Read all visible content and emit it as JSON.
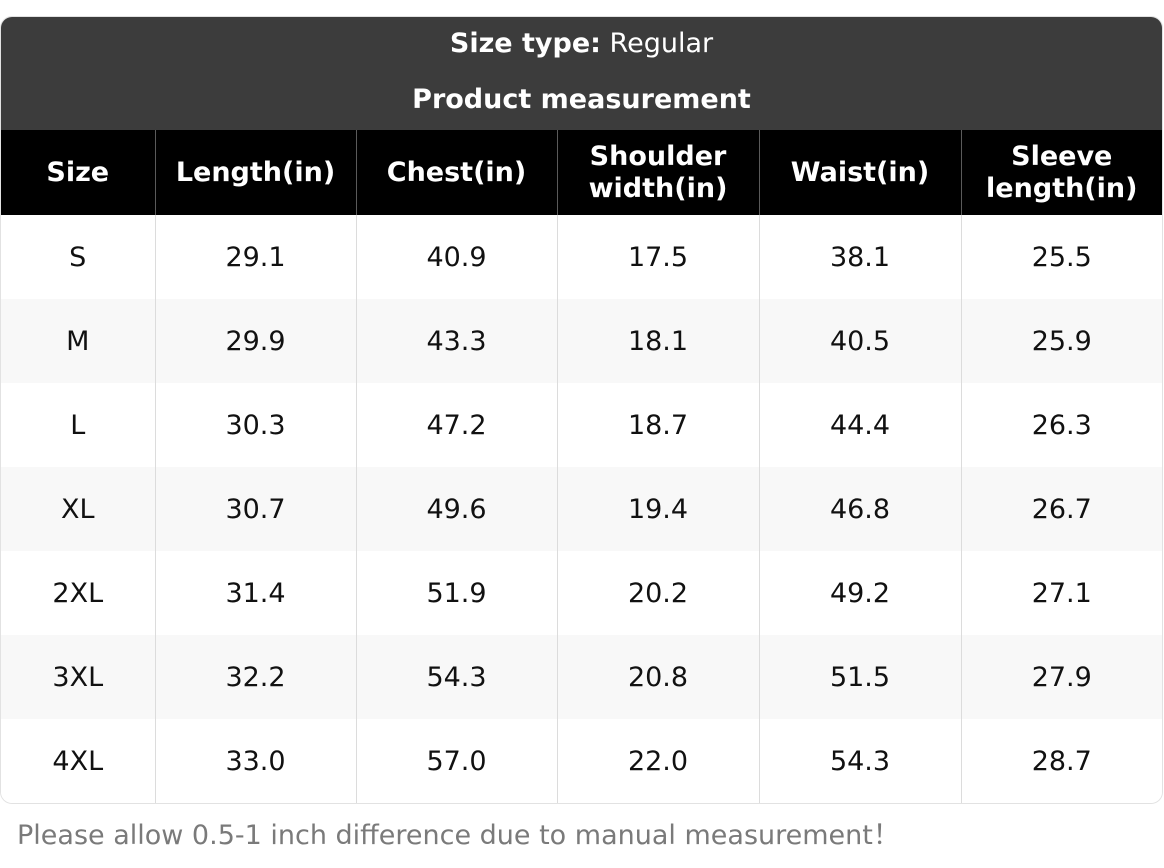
{
  "header": {
    "size_type_label": "Size type:",
    "size_type_value": "Regular",
    "subtitle": "Product measurement"
  },
  "table": {
    "columns": [
      "Size",
      "Length(in)",
      "Chest(in)",
      "Shoulder width(in)",
      "Waist(in)",
      "Sleeve length(in)"
    ],
    "rows": [
      [
        "S",
        "29.1",
        "40.9",
        "17.5",
        "38.1",
        "25.5"
      ],
      [
        "M",
        "29.9",
        "43.3",
        "18.1",
        "40.5",
        "25.9"
      ],
      [
        "L",
        "30.3",
        "47.2",
        "18.7",
        "44.4",
        "26.3"
      ],
      [
        "XL",
        "30.7",
        "49.6",
        "19.4",
        "46.8",
        "26.7"
      ],
      [
        "2XL",
        "31.4",
        "51.9",
        "20.2",
        "49.2",
        "27.1"
      ],
      [
        "3XL",
        "32.2",
        "54.3",
        "20.8",
        "51.5",
        "27.9"
      ],
      [
        "4XL",
        "33.0",
        "57.0",
        "22.0",
        "54.3",
        "28.7"
      ]
    ]
  },
  "note": "Please allow 0.5-1 inch difference due to manual measurement！"
}
